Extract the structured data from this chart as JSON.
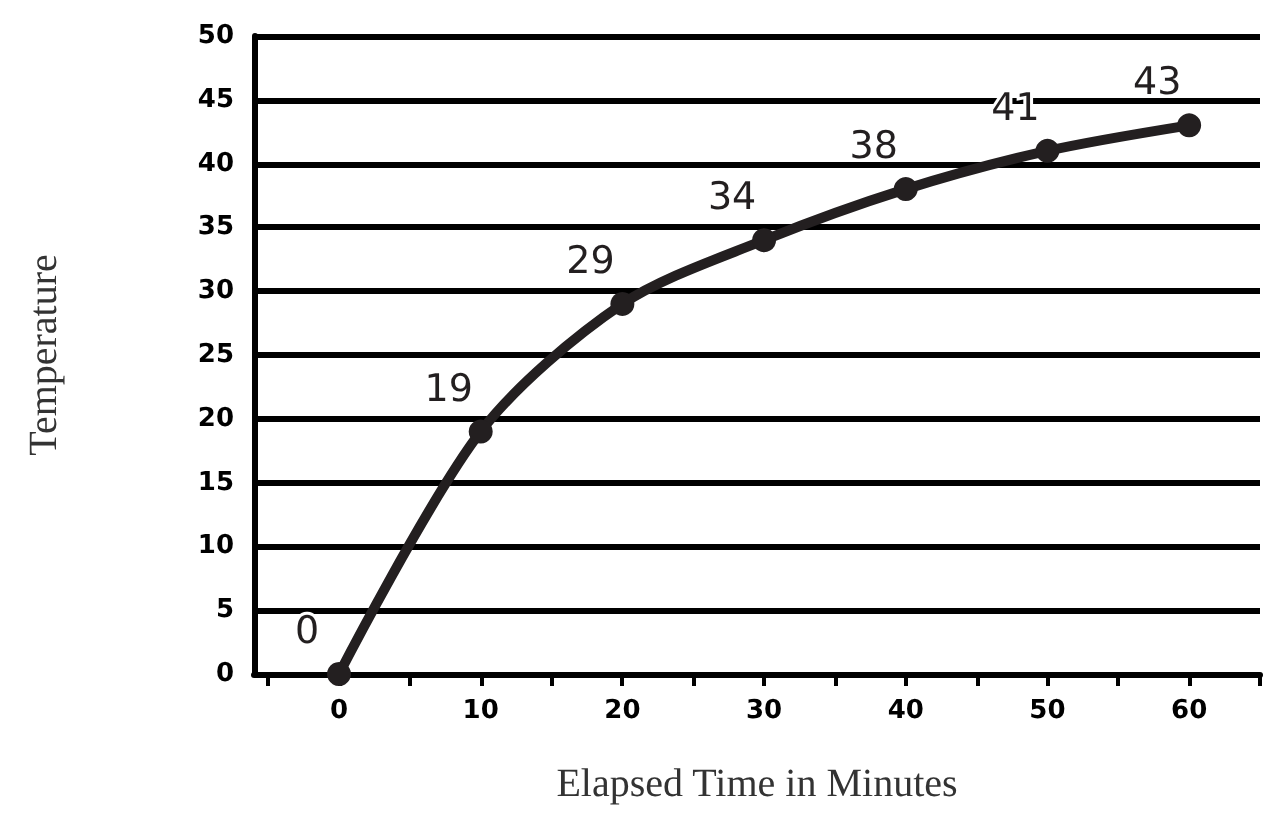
{
  "chart_data": {
    "type": "line",
    "xlabel": "Elapsed Time in Minutes",
    "ylabel": "Temperature",
    "x": [
      0,
      10,
      20,
      30,
      40,
      50,
      60
    ],
    "series": [
      {
        "color": "#231f20",
        "values": [
          0,
          19,
          29,
          34,
          38,
          41,
          43
        ]
      }
    ],
    "data_labels": true,
    "marker": "circle",
    "grid": "y",
    "xlim": [
      -6,
      65
    ],
    "xticks": [
      {
        "value": -5,
        "label": null
      },
      0,
      {
        "value": 5,
        "label": null
      },
      10,
      {
        "value": 15,
        "label": null
      },
      20,
      {
        "value": 25,
        "label": null
      },
      30,
      {
        "value": 35,
        "label": null
      },
      40,
      {
        "value": 45,
        "label": null
      },
      50,
      {
        "value": 55,
        "label": null
      },
      60,
      {
        "value": 65,
        "label": null
      }
    ],
    "ylim": [
      0,
      50
    ],
    "yticks": [
      0,
      5,
      10,
      15,
      20,
      25,
      30,
      35,
      40,
      45,
      50
    ]
  }
}
